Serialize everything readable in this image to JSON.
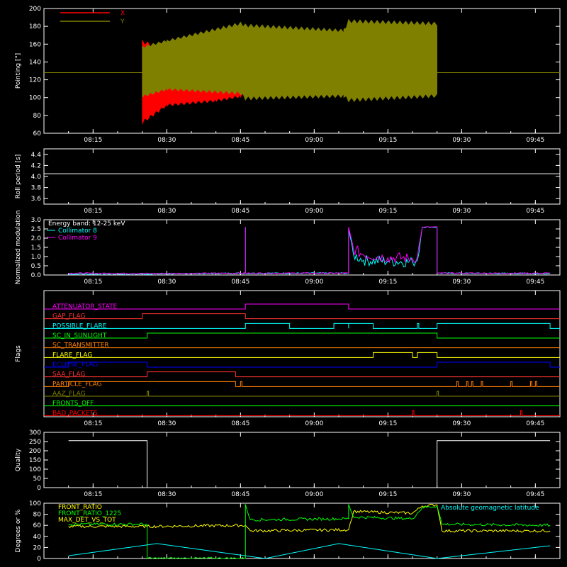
{
  "x_ticks": [
    "08:15",
    "08:30",
    "08:45",
    "09:00",
    "09:15",
    "09:30",
    "09:45"
  ],
  "chart_data": [
    {
      "type": "line",
      "panel": "pointing",
      "ylabel": "Pointing [\"]",
      "ylim": [
        60,
        200
      ],
      "yticks": [
        "60",
        "80",
        "100",
        "120",
        "140",
        "160",
        "180",
        "200"
      ],
      "legend": [
        {
          "name": "X",
          "color": "#ff0000"
        },
        {
          "name": "Y",
          "color": "#808000"
        }
      ],
      "reference_line": 128,
      "data_start": "08:25",
      "data_end": "09:25",
      "series": [
        {
          "name": "X",
          "color": "#ff0000",
          "envelope": [
            {
              "time": "08:25",
              "min": 70,
              "max": 165
            },
            {
              "time": "08:30",
              "min": 90,
              "max": 155
            },
            {
              "time": "08:40",
              "min": 95,
              "max": 162
            },
            {
              "time": "08:45",
              "min": 100,
              "max": 165
            },
            {
              "time": "08:46",
              "min": 103,
              "max": 170
            },
            {
              "time": "08:58",
              "min": 106,
              "max": 165
            },
            {
              "time": "09:05",
              "min": 108,
              "max": 168
            },
            {
              "time": "09:07",
              "min": 105,
              "max": 175
            },
            {
              "time": "09:25",
              "min": 108,
              "max": 172
            }
          ]
        },
        {
          "name": "Y",
          "color": "#808000",
          "envelope": [
            {
              "time": "08:25",
              "min": 100,
              "max": 158
            },
            {
              "time": "08:30",
              "min": 108,
              "max": 165
            },
            {
              "time": "08:45",
              "min": 103,
              "max": 185
            },
            {
              "time": "08:46",
              "min": 97,
              "max": 183
            },
            {
              "time": "09:06",
              "min": 100,
              "max": 177
            },
            {
              "time": "09:07",
              "min": 95,
              "max": 188
            },
            {
              "time": "09:25",
              "min": 100,
              "max": 185
            }
          ]
        }
      ]
    },
    {
      "type": "line",
      "panel": "roll",
      "ylabel": "Roll period [s]",
      "ylim": [
        3.5,
        4.5
      ],
      "yticks": [
        "3.6",
        "3.8",
        "4.0",
        "4.2",
        "4.4"
      ],
      "series": [
        {
          "name": "",
          "color": "#ffffff",
          "value": 4.05
        }
      ]
    },
    {
      "type": "line",
      "panel": "modulation",
      "ylabel": "Normalized modulation",
      "ylim": [
        0,
        3
      ],
      "yticks": [
        "0.0",
        "0.5",
        "1.0",
        "1.5",
        "2.0",
        "2.5",
        "3.0"
      ],
      "annotation": "Energy band: 12-25 keV",
      "legend": [
        {
          "name": "Energy band: 12-25 keV",
          "color": "#ffffff"
        },
        {
          "name": "Collimator 8",
          "color": "#00ffff"
        },
        {
          "name": "Collimator 9",
          "color": "#ff00ff"
        }
      ],
      "series": [
        {
          "name": "Collimator 8",
          "color": "#00ffff",
          "points": [
            [
              "08:10",
              0.05
            ],
            [
              "08:25",
              0.05
            ],
            [
              "08:46",
              0.1
            ],
            [
              "08:46",
              2.6
            ],
            [
              "08:46",
              0.1
            ],
            [
              "09:07",
              0.1
            ],
            [
              "09:07",
              2.5
            ],
            [
              "09:08",
              1.1
            ],
            [
              "09:10",
              0.8
            ],
            [
              "09:15",
              0.75
            ],
            [
              "09:20",
              0.7
            ],
            [
              "09:21",
              0.8
            ],
            [
              "09:22",
              2.6
            ],
            [
              "09:25",
              2.6
            ],
            [
              "09:25",
              0.1
            ],
            [
              "09:48",
              0.08
            ]
          ]
        },
        {
          "name": "Collimator 9",
          "color": "#ff00ff",
          "points": [
            [
              "08:10",
              0.1
            ],
            [
              "08:25",
              0.08
            ],
            [
              "08:46",
              0.1
            ],
            [
              "08:46",
              2.6
            ],
            [
              "08:46",
              0.1
            ],
            [
              "09:07",
              0.1
            ],
            [
              "09:07",
              2.6
            ],
            [
              "09:08",
              1.4
            ],
            [
              "09:10",
              1.1
            ],
            [
              "09:15",
              0.95
            ],
            [
              "09:20",
              0.9
            ],
            [
              "09:21",
              1.0
            ],
            [
              "09:22",
              2.6
            ],
            [
              "09:25",
              2.6
            ],
            [
              "09:25",
              0.1
            ],
            [
              "09:48",
              0.1
            ]
          ]
        }
      ]
    },
    {
      "type": "line",
      "panel": "flags",
      "ylabel": "Flags",
      "flags": [
        {
          "name": "ATTENUATOR_STATE",
          "color": "#ff00ff",
          "on": [
            [
              "08:46",
              "09:07"
            ]
          ]
        },
        {
          "name": "GAP_FLAG",
          "color": "#ff3333",
          "on": [
            [
              "08:25",
              "08:46"
            ]
          ]
        },
        {
          "name": "POSSIBLE_FLARE",
          "color": "#00ffff",
          "on": [
            [
              "08:46",
              "08:55"
            ],
            [
              "09:04",
              "09:07"
            ],
            [
              "09:07",
              "09:12"
            ],
            [
              "09:21",
              "09:21"
            ],
            [
              "09:25",
              "09:48"
            ]
          ]
        },
        {
          "name": "SC_IN_SUNLIGHT",
          "color": "#00ff00",
          "on": [
            [
              "08:26",
              "09:25"
            ]
          ]
        },
        {
          "name": "SC_TRANSMITTER",
          "color": "#ff8000",
          "on": []
        },
        {
          "name": "FLARE_FLAG",
          "color": "#ffff00",
          "on": [
            [
              "09:12",
              "09:20"
            ],
            [
              "09:21",
              "09:25"
            ]
          ]
        },
        {
          "name": "ECLIPSE_FLAG",
          "color": "#0000ff",
          "on": [
            [
              "08:10",
              "08:26"
            ],
            [
              "09:25",
              "09:48"
            ]
          ]
        },
        {
          "name": "SAA_FLAG",
          "color": "#ff3333",
          "on": [
            [
              "08:26",
              "08:44"
            ]
          ]
        },
        {
          "name": "PARTICLE_FLAG",
          "color": "#ff8000",
          "on": [
            [
              "08:10",
              "08:44"
            ],
            [
              "08:45",
              "08:45"
            ],
            [
              "09:29",
              "09:29"
            ],
            [
              "09:31",
              "09:31"
            ],
            [
              "09:32",
              "09:32"
            ],
            [
              "09:34",
              "09:34"
            ],
            [
              "09:40",
              "09:40"
            ],
            [
              "09:44",
              "09:44"
            ],
            [
              "09:45",
              "09:45"
            ]
          ]
        },
        {
          "name": "AAZ_FLAG",
          "color": "#808000",
          "on": [
            [
              "08:26",
              "08:26"
            ],
            [
              "09:25",
              "09:25"
            ]
          ]
        },
        {
          "name": "FRONTS_OFF",
          "color": "#00ff00",
          "on": []
        },
        {
          "name": "BAD_PACKETS",
          "color": "#ff0000",
          "on": [
            [
              "09:20",
              "09:20"
            ],
            [
              "09:42",
              "09:42"
            ]
          ]
        }
      ]
    },
    {
      "type": "line",
      "panel": "quality",
      "ylabel": "Quality",
      "ylim": [
        0,
        300
      ],
      "yticks": [
        "0",
        "50",
        "100",
        "150",
        "200",
        "250",
        "300"
      ],
      "series": [
        {
          "name": "",
          "color": "#ffffff",
          "points": [
            [
              "08:10",
              255
            ],
            [
              "08:26",
              255
            ],
            [
              "08:26",
              0
            ],
            [
              "09:25",
              0
            ],
            [
              "09:25",
              255
            ],
            [
              "09:48",
              255
            ]
          ]
        }
      ]
    },
    {
      "type": "line",
      "panel": "geometry",
      "ylabel": "Degrees or %",
      "ylim": [
        0,
        100
      ],
      "yticks": [
        "0",
        "20",
        "40",
        "60",
        "80",
        "100"
      ],
      "legend": [
        {
          "name": "FRONT_RATIO",
          "color": "#ffff00"
        },
        {
          "name": "FRONT_RATIO_1225",
          "color": "#00ff00"
        },
        {
          "name": "MAX_DET_VS_TOT",
          "color": "#ffff00"
        }
      ],
      "annotation": "Absolute geomagnetic latitude",
      "series": [
        {
          "name": "FRONT_RATIO",
          "color": "#ffff00",
          "points": [
            [
              "08:10",
              58
            ],
            [
              "08:26",
              58
            ],
            [
              "08:46",
              60
            ],
            [
              "08:47",
              50
            ],
            [
              "09:07",
              52
            ],
            [
              "09:08",
              85
            ],
            [
              "09:20",
              82
            ],
            [
              "09:22",
              95
            ],
            [
              "09:25",
              97
            ],
            [
              "09:26",
              50
            ],
            [
              "09:48",
              50
            ]
          ]
        },
        {
          "name": "FRONT_RATIO_1225",
          "color": "#00ff00",
          "points": [
            [
              "08:10",
              62
            ],
            [
              "08:26",
              62
            ],
            [
              "08:26",
              0
            ],
            [
              "08:46",
              0
            ],
            [
              "08:46",
              98
            ],
            [
              "08:47",
              70
            ],
            [
              "09:07",
              72
            ],
            [
              "09:07",
              98
            ],
            [
              "09:08",
              75
            ],
            [
              "09:20",
              72
            ],
            [
              "09:22",
              92
            ],
            [
              "09:25",
              95
            ],
            [
              "09:26",
              62
            ],
            [
              "09:48",
              60
            ]
          ]
        },
        {
          "name": "Absolute geomagnetic latitude",
          "color": "#00ffff",
          "points": [
            [
              "08:10",
              5
            ],
            [
              "08:28",
              27
            ],
            [
              "08:50",
              0
            ],
            [
              "09:05",
              27
            ],
            [
              "09:25",
              0
            ],
            [
              "09:45",
              20
            ],
            [
              "09:48",
              23
            ]
          ]
        }
      ]
    }
  ]
}
